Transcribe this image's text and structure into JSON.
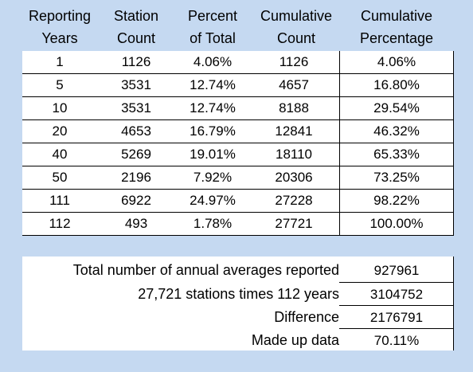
{
  "headers": [
    {
      "line1": "Reporting",
      "line2": "Years"
    },
    {
      "line1": "Station",
      "line2": "Count"
    },
    {
      "line1": "Percent",
      "line2": "of Total"
    },
    {
      "line1": "Cumulative",
      "line2": "Count"
    },
    {
      "line1": "Cumulative",
      "line2": "Percentage"
    }
  ],
  "rows": [
    [
      "1",
      "1126",
      "4.06%",
      "1126",
      "4.06%"
    ],
    [
      "5",
      "3531",
      "12.74%",
      "4657",
      "16.80%"
    ],
    [
      "10",
      "3531",
      "12.74%",
      "8188",
      "29.54%"
    ],
    [
      "20",
      "4653",
      "16.79%",
      "12841",
      "46.32%"
    ],
    [
      "40",
      "5269",
      "19.01%",
      "18110",
      "65.33%"
    ],
    [
      "50",
      "2196",
      "7.92%",
      "20306",
      "73.25%"
    ],
    [
      "111",
      "6922",
      "24.97%",
      "27228",
      "98.22%"
    ],
    [
      "112",
      "493",
      "1.78%",
      "27721",
      "100.00%"
    ]
  ],
  "summary": [
    {
      "label": "Total number of annual averages reported",
      "value": "927961"
    },
    {
      "label": "27,721 stations times 112 years",
      "value": "3104752"
    },
    {
      "label": "Difference",
      "value": "2176791"
    },
    {
      "label": "Made up data",
      "value": "70.11%"
    }
  ],
  "colors": {
    "background": "#c5d9f1",
    "panel": "#ffffff"
  }
}
